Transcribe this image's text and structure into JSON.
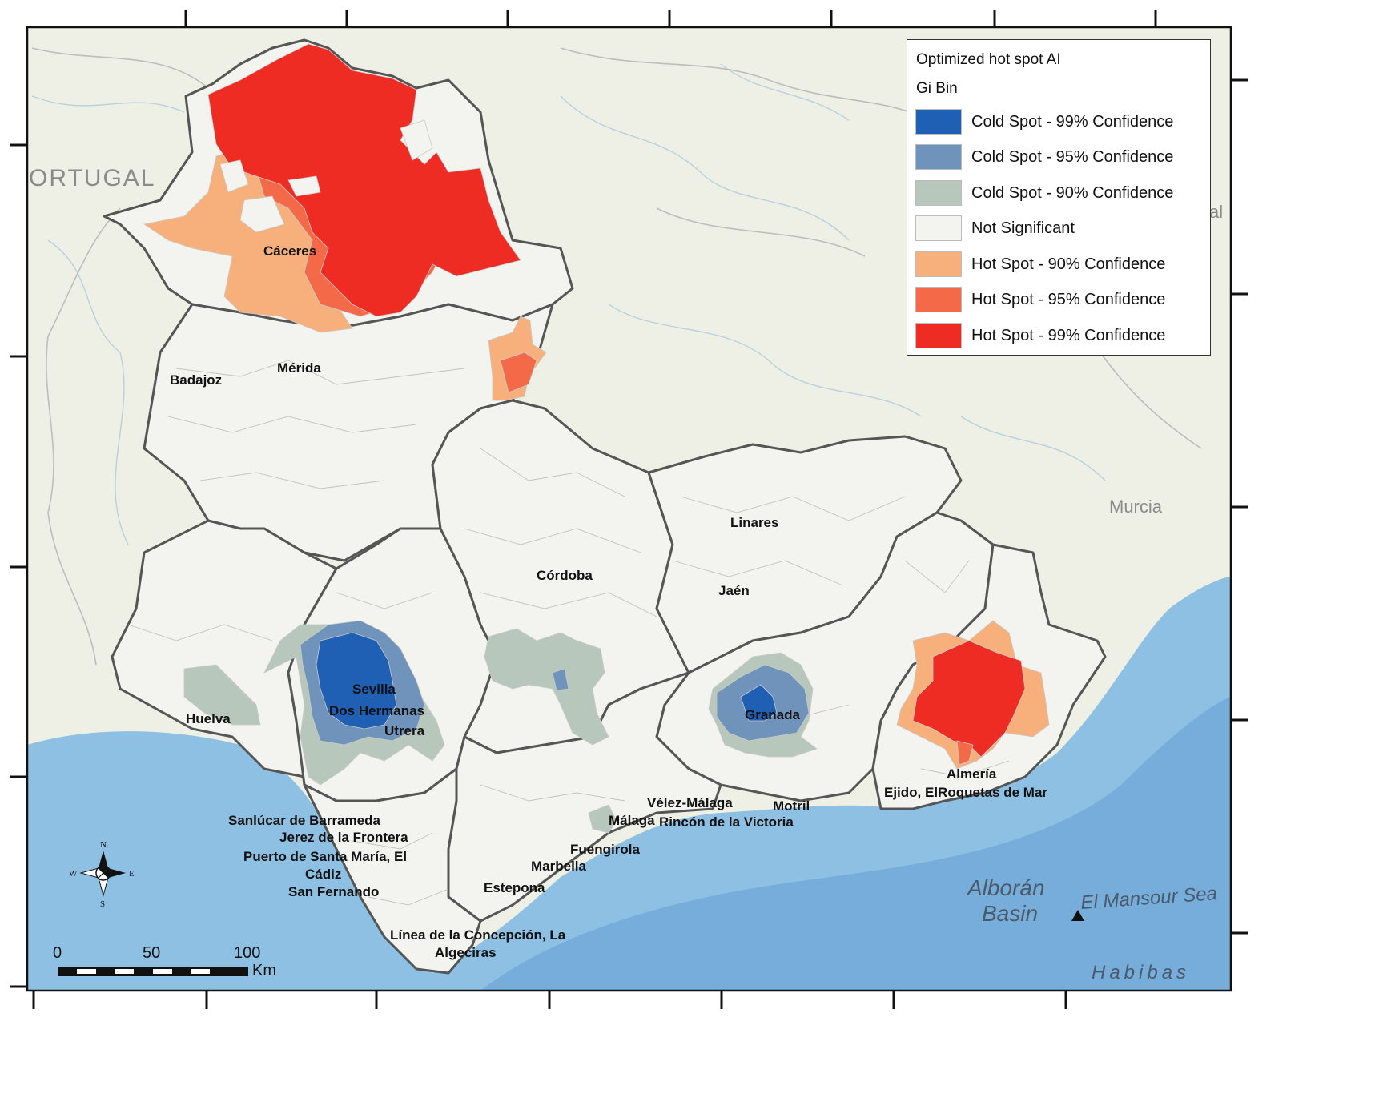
{
  "legend": {
    "title": "Optimized hot spot AI",
    "subtitle": "Gi Bin",
    "items": [
      {
        "label": "Cold Spot - 99% Confidence",
        "color": "#1f5fb4"
      },
      {
        "label": "Cold Spot - 95% Confidence",
        "color": "#6f93ba"
      },
      {
        "label": "Cold Spot - 90% Confidence",
        "color": "#b7c7bc"
      },
      {
        "label": "Not Significant",
        "color": "#f3f3ef"
      },
      {
        "label": "Hot Spot - 90% Confidence",
        "color": "#f7b07c"
      },
      {
        "label": "Hot Spot - 95% Confidence",
        "color": "#f46a48"
      },
      {
        "label": "Hot Spot - 99% Confidence",
        "color": "#ee2c24"
      }
    ]
  },
  "cities": {
    "caceres": "Cáceres",
    "merida": "Mérida",
    "badajoz": "Badajoz",
    "cordoba": "Córdoba",
    "linares": "Linares",
    "jaen": "Jaén",
    "sevilla": "Sevilla",
    "dos_hermanas": "Dos Hermanas",
    "utrera": "Utrera",
    "huelva": "Huelva",
    "granada": "Granada",
    "almeria": "Almería",
    "ejido_roquetas": "Ejido, ElRoquetas de Mar",
    "velez_malaga": "Vélez-Málaga",
    "motril": "Motril",
    "malaga": "Málaga",
    "rincon": "Rincón de la Victoria",
    "sanlucar": "Sanlúcar de Barrameda",
    "jerez": "Jerez de la Frontera",
    "puerto": "Puerto de Santa María, El",
    "cadiz": "Cádiz",
    "san_fernando": "San Fernando",
    "fuengirola": "Fuengirola",
    "marbella": "Marbella",
    "estepona": "Estepona",
    "linea": "Línea de la Concepción, La",
    "algeciras": "Algeciras"
  },
  "basemap": {
    "portugal": "ORTUGAL",
    "murcia": "Murcia",
    "alboran": "Alborán",
    "basin": "Basin",
    "mansour": "El Mansour Sea",
    "habibas": "Habibas",
    "edge_fragment": "al"
  },
  "scale_bar": {
    "ticks": [
      "0",
      "50",
      "100"
    ],
    "unit": "Km"
  },
  "compass": {
    "n": "N",
    "s": "S",
    "e": "E",
    "w": "W"
  },
  "colors": {
    "sea": "#8ec0e4",
    "deep_sea": "#5b97cf",
    "land": "#eef0e6",
    "region_fill": "#f3f3ef",
    "region_border": "#555555"
  }
}
